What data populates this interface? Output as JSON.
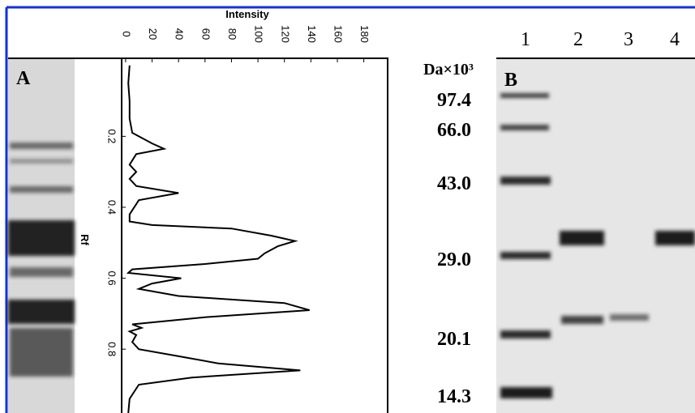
{
  "chart_data": {
    "type": "line",
    "x_label": "Rf",
    "y_label": "Intensity",
    "x": [
      0.0,
      0.05,
      0.1,
      0.15,
      0.19,
      0.22,
      0.235,
      0.25,
      0.28,
      0.3,
      0.32,
      0.34,
      0.36,
      0.38,
      0.42,
      0.44,
      0.45,
      0.46,
      0.48,
      0.495,
      0.51,
      0.53,
      0.545,
      0.56,
      0.575,
      0.585,
      0.6,
      0.615,
      0.63,
      0.65,
      0.67,
      0.69,
      0.71,
      0.73,
      0.74,
      0.75,
      0.76,
      0.78,
      0.8,
      0.82,
      0.84,
      0.86,
      0.88,
      0.9,
      0.94,
      0.98
    ],
    "values": [
      3,
      2,
      3,
      3,
      5,
      20,
      29,
      8,
      3,
      8,
      3,
      8,
      40,
      10,
      3,
      3,
      20,
      80,
      110,
      128,
      115,
      105,
      100,
      60,
      5,
      2,
      42,
      20,
      10,
      40,
      120,
      139,
      60,
      5,
      12,
      3,
      8,
      5,
      10,
      40,
      70,
      132,
      50,
      10,
      3,
      2
    ],
    "color": "#000000",
    "xlim": [
      -0.02,
      0.98
    ],
    "xticks": [
      0.2,
      0.4,
      0.6,
      0.8
    ],
    "ylim": [
      -3,
      198
    ],
    "yticks": [
      0,
      20,
      40,
      60,
      80,
      100,
      120,
      140,
      160,
      180
    ]
  },
  "panel_a": "A",
  "panel_b": "B",
  "marker_unit": "Da×10³",
  "markers": [
    "97.4",
    "66.0",
    "43.0",
    "29.0",
    "20.1",
    "14.3"
  ],
  "lanes": [
    "1",
    "2",
    "3",
    "4"
  ]
}
